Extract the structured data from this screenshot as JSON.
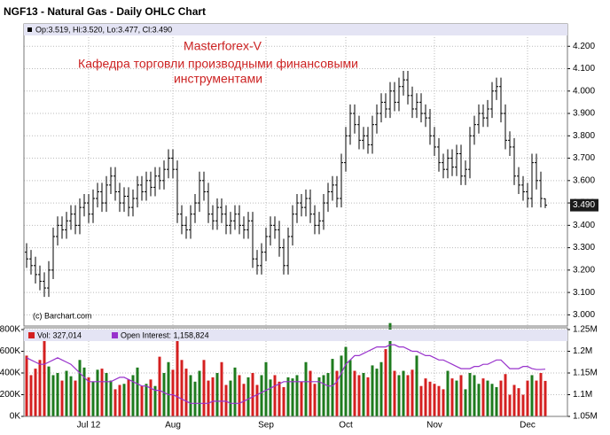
{
  "title": "NGF13 - Natural Gas - Daily OHLC Chart",
  "chart_data": [
    {
      "type": "ohlc",
      "info": "Op:3.519, Hi:3.520, Lo:3.477, Cl:3.490",
      "last_label": "3.490",
      "annotations": [
        "Masterforex-V",
        "Кафедра торговли производными финансовыми",
        "инструментами",
        "(c) Barchart.com"
      ],
      "color": "#000000",
      "ylim": [
        2.95,
        4.3
      ],
      "yticks": [
        {
          "value": 3.0,
          "label": "3.000"
        },
        {
          "value": 3.1,
          "label": "3.100"
        },
        {
          "value": 3.2,
          "label": "3.200"
        },
        {
          "value": 3.3,
          "label": "3.300"
        },
        {
          "value": 3.4,
          "label": "3.400"
        },
        {
          "value": 3.5,
          "label": "3.500"
        },
        {
          "value": 3.6,
          "label": "3.600"
        },
        {
          "value": 3.7,
          "label": "3.700"
        },
        {
          "value": 3.8,
          "label": "3.800"
        },
        {
          "value": 3.9,
          "label": "3.900"
        },
        {
          "value": 4.0,
          "label": "4.000"
        },
        {
          "value": 4.1,
          "label": "4.100"
        },
        {
          "value": 4.2,
          "label": "4.200"
        }
      ],
      "grid": true,
      "open": [
        3.28,
        3.25,
        3.22,
        3.18,
        3.15,
        3.12,
        3.2,
        3.35,
        3.4,
        3.38,
        3.42,
        3.45,
        3.4,
        3.48,
        3.5,
        3.45,
        3.52,
        3.55,
        3.5,
        3.58,
        3.62,
        3.55,
        3.5,
        3.53,
        3.48,
        3.52,
        3.58,
        3.55,
        3.6,
        3.57,
        3.62,
        3.6,
        3.65,
        3.7,
        3.65,
        3.45,
        3.4,
        3.38,
        3.45,
        3.5,
        3.6,
        3.55,
        3.45,
        3.42,
        3.48,
        3.45,
        3.4,
        3.42,
        3.45,
        3.4,
        3.38,
        3.42,
        3.25,
        3.22,
        3.28,
        3.35,
        3.4,
        3.38,
        3.3,
        3.22,
        3.35,
        3.45,
        3.5,
        3.48,
        3.52,
        3.45,
        3.4,
        3.42,
        3.5,
        3.55,
        3.58,
        3.52,
        3.68,
        3.8,
        3.9,
        3.85,
        3.78,
        3.8,
        3.76,
        3.85,
        3.9,
        3.95,
        3.92,
        4.0,
        3.95,
        4.02,
        4.05,
        3.98,
        3.92,
        3.95,
        3.9,
        3.88,
        3.8,
        3.75,
        3.68,
        3.65,
        3.7,
        3.66,
        3.72,
        3.62,
        3.65,
        3.8,
        3.85,
        3.9,
        3.88,
        3.92,
        4.0,
        4.02,
        3.9,
        3.78,
        3.75,
        3.62,
        3.58,
        3.55,
        3.52,
        3.68,
        3.6,
        3.519
      ],
      "high": [
        3.32,
        3.29,
        3.26,
        3.22,
        3.19,
        3.24,
        3.39,
        3.44,
        3.44,
        3.46,
        3.49,
        3.49,
        3.52,
        3.54,
        3.54,
        3.56,
        3.59,
        3.59,
        3.62,
        3.66,
        3.66,
        3.59,
        3.57,
        3.57,
        3.56,
        3.62,
        3.62,
        3.64,
        3.64,
        3.66,
        3.66,
        3.69,
        3.74,
        3.74,
        3.69,
        3.49,
        3.44,
        3.49,
        3.54,
        3.64,
        3.64,
        3.59,
        3.49,
        3.52,
        3.52,
        3.49,
        3.46,
        3.49,
        3.49,
        3.44,
        3.46,
        3.46,
        3.29,
        3.32,
        3.39,
        3.44,
        3.44,
        3.42,
        3.34,
        3.39,
        3.49,
        3.54,
        3.54,
        3.56,
        3.56,
        3.49,
        3.46,
        3.54,
        3.59,
        3.62,
        3.62,
        3.72,
        3.84,
        3.94,
        3.94,
        3.89,
        3.84,
        3.84,
        3.89,
        3.94,
        3.99,
        3.99,
        4.04,
        4.04,
        4.06,
        4.09,
        4.09,
        4.02,
        3.99,
        3.99,
        3.94,
        3.92,
        3.84,
        3.79,
        3.72,
        3.74,
        3.74,
        3.76,
        3.76,
        3.69,
        3.84,
        3.89,
        3.94,
        3.94,
        3.96,
        4.04,
        4.06,
        4.06,
        3.94,
        3.82,
        3.79,
        3.66,
        3.62,
        3.59,
        3.72,
        3.72,
        3.64,
        3.52
      ],
      "low": [
        3.21,
        3.18,
        3.14,
        3.11,
        3.08,
        3.08,
        3.16,
        3.31,
        3.34,
        3.34,
        3.38,
        3.36,
        3.36,
        3.44,
        3.41,
        3.41,
        3.48,
        3.46,
        3.46,
        3.54,
        3.51,
        3.46,
        3.46,
        3.44,
        3.44,
        3.48,
        3.51,
        3.51,
        3.53,
        3.53,
        3.56,
        3.56,
        3.61,
        3.61,
        3.41,
        3.36,
        3.34,
        3.34,
        3.41,
        3.46,
        3.51,
        3.41,
        3.38,
        3.38,
        3.41,
        3.36,
        3.36,
        3.38,
        3.36,
        3.34,
        3.34,
        3.21,
        3.18,
        3.18,
        3.24,
        3.31,
        3.34,
        3.26,
        3.18,
        3.18,
        3.31,
        3.41,
        3.44,
        3.44,
        3.41,
        3.36,
        3.36,
        3.38,
        3.46,
        3.51,
        3.48,
        3.48,
        3.64,
        3.76,
        3.81,
        3.74,
        3.74,
        3.72,
        3.72,
        3.81,
        3.86,
        3.88,
        3.88,
        3.91,
        3.91,
        3.98,
        3.94,
        3.88,
        3.88,
        3.86,
        3.84,
        3.76,
        3.71,
        3.64,
        3.61,
        3.61,
        3.62,
        3.62,
        3.58,
        3.58,
        3.61,
        3.76,
        3.81,
        3.84,
        3.84,
        3.88,
        3.96,
        3.86,
        3.74,
        3.71,
        3.58,
        3.54,
        3.51,
        3.48,
        3.48,
        3.56,
        3.48,
        3.477
      ],
      "close": [
        3.25,
        3.22,
        3.18,
        3.15,
        3.12,
        3.2,
        3.35,
        3.4,
        3.38,
        3.42,
        3.45,
        3.4,
        3.48,
        3.5,
        3.45,
        3.52,
        3.55,
        3.5,
        3.58,
        3.62,
        3.55,
        3.5,
        3.53,
        3.48,
        3.52,
        3.58,
        3.55,
        3.6,
        3.57,
        3.62,
        3.6,
        3.65,
        3.7,
        3.65,
        3.45,
        3.4,
        3.38,
        3.45,
        3.5,
        3.6,
        3.55,
        3.45,
        3.42,
        3.48,
        3.45,
        3.4,
        3.42,
        3.45,
        3.4,
        3.38,
        3.42,
        3.25,
        3.22,
        3.28,
        3.35,
        3.4,
        3.38,
        3.3,
        3.22,
        3.35,
        3.45,
        3.5,
        3.48,
        3.52,
        3.45,
        3.4,
        3.42,
        3.5,
        3.55,
        3.58,
        3.52,
        3.68,
        3.8,
        3.9,
        3.85,
        3.78,
        3.8,
        3.76,
        3.85,
        3.9,
        3.95,
        3.92,
        4.0,
        3.95,
        4.02,
        4.05,
        3.98,
        3.92,
        3.95,
        3.9,
        3.88,
        3.8,
        3.75,
        3.68,
        3.65,
        3.7,
        3.66,
        3.72,
        3.62,
        3.65,
        3.8,
        3.85,
        3.9,
        3.88,
        3.92,
        4.0,
        4.02,
        3.9,
        3.78,
        3.75,
        3.62,
        3.58,
        3.55,
        3.52,
        3.68,
        3.6,
        3.52,
        3.49
      ]
    },
    {
      "type": "bar",
      "categories": [
        null,
        null,
        null,
        null,
        null,
        null,
        null,
        null,
        null,
        null,
        null,
        null,
        null,
        null,
        "Jul 12",
        null,
        null,
        null,
        null,
        null,
        null,
        null,
        null,
        null,
        null,
        null,
        null,
        null,
        null,
        null,
        null,
        null,
        null,
        "Aug",
        null,
        null,
        null,
        null,
        null,
        null,
        null,
        null,
        null,
        null,
        null,
        null,
        null,
        null,
        null,
        null,
        null,
        null,
        null,
        null,
        "Sep",
        null,
        null,
        null,
        null,
        null,
        null,
        null,
        null,
        null,
        null,
        null,
        null,
        null,
        null,
        null,
        null,
        null,
        "Oct",
        null,
        null,
        null,
        null,
        null,
        null,
        null,
        null,
        null,
        null,
        null,
        null,
        null,
        null,
        null,
        null,
        null,
        null,
        null,
        "Nov",
        null,
        null,
        null,
        null,
        null,
        null,
        null,
        null,
        null,
        null,
        null,
        null,
        null,
        null,
        null,
        null,
        null,
        null,
        null,
        null,
        "Dec",
        null,
        null,
        null,
        null
      ],
      "ylim": [
        0,
        800000
      ],
      "yticks": [
        {
          "value": 0,
          "label": "0K"
        },
        {
          "value": 200000,
          "label": "200K"
        },
        {
          "value": 400000,
          "label": "400K"
        },
        {
          "value": 600000,
          "label": "600K"
        },
        {
          "value": 800000,
          "label": "800K"
        }
      ],
      "y2lim": [
        1050000,
        1250000
      ],
      "y2ticks": [
        {
          "value": 1050000,
          "label": "1.05M"
        },
        {
          "value": 1100000,
          "label": "1.1M"
        },
        {
          "value": 1150000,
          "label": "1.15M"
        },
        {
          "value": 1200000,
          "label": "1.2M"
        },
        {
          "value": 1250000,
          "label": "1.25M"
        }
      ],
      "grid": true,
      "up_color": "#1e7b1e",
      "series": [
        {
          "name": "Vol: 327,014",
          "color": "#d42020",
          "values": [
            560000,
            380000,
            440000,
            520000,
            700000,
            460000,
            380000,
            400000,
            330000,
            420000,
            370000,
            330000,
            520000,
            450000,
            360000,
            320000,
            430000,
            440000,
            400000,
            330000,
            250000,
            290000,
            300000,
            340000,
            380000,
            450000,
            280000,
            300000,
            340000,
            280000,
            550000,
            400000,
            500000,
            430000,
            760000,
            520000,
            440000,
            380000,
            320000,
            420000,
            520000,
            330000,
            360000,
            400000,
            500000,
            290000,
            330000,
            450000,
            380000,
            300000,
            360000,
            400000,
            290000,
            380000,
            500000,
            340000,
            380000,
            320000,
            270000,
            360000,
            350000,
            380000,
            320000,
            500000,
            420000,
            300000,
            360000,
            380000,
            400000,
            530000,
            420000,
            560000,
            640000,
            520000,
            420000,
            380000,
            400000,
            360000,
            470000,
            440000,
            500000,
            620000,
            860000,
            420000,
            380000,
            420000,
            380000,
            430000,
            560000,
            280000,
            350000,
            320000,
            300000,
            280000,
            250000,
            420000,
            350000,
            330000,
            380000,
            250000,
            400000,
            380000,
            300000,
            350000,
            330000,
            300000,
            270000,
            330000,
            390000,
            200000,
            290000,
            260000,
            200000,
            330000,
            380000,
            330000,
            400000,
            327014
          ]
        },
        {
          "name": "Open Interest: 1,158,824",
          "color": "#9933cc",
          "axis": "y2",
          "values": [
            1185000,
            1180000,
            1175000,
            1170000,
            1170000,
            1175000,
            1180000,
            1185000,
            1180000,
            1175000,
            1170000,
            1160000,
            1150000,
            1140000,
            1130000,
            1130000,
            1130000,
            1130000,
            1130000,
            1130000,
            1135000,
            1140000,
            1140000,
            1135000,
            1130000,
            1125000,
            1120000,
            1120000,
            1115000,
            1110000,
            1110000,
            1105000,
            1100000,
            1100000,
            1095000,
            1090000,
            1085000,
            1080000,
            1080000,
            1080000,
            1080000,
            1080000,
            1085000,
            1085000,
            1085000,
            1085000,
            1080000,
            1080000,
            1080000,
            1085000,
            1090000,
            1095000,
            1100000,
            1105000,
            1110000,
            1115000,
            1120000,
            1125000,
            1130000,
            1130000,
            1130000,
            1130000,
            1130000,
            1130000,
            1130000,
            1130000,
            1130000,
            1125000,
            1120000,
            1120000,
            1130000,
            1150000,
            1170000,
            1180000,
            1190000,
            1190000,
            1195000,
            1200000,
            1205000,
            1210000,
            1210000,
            1210000,
            1215000,
            1215000,
            1210000,
            1210000,
            1205000,
            1200000,
            1200000,
            1195000,
            1190000,
            1190000,
            1185000,
            1180000,
            1180000,
            1175000,
            1170000,
            1165000,
            1160000,
            1160000,
            1160000,
            1165000,
            1165000,
            1170000,
            1170000,
            1175000,
            1180000,
            1180000,
            1170000,
            1160000,
            1160000,
            1160000,
            1165000,
            1165000,
            1160000,
            1158000,
            1158000,
            1158824
          ]
        }
      ]
    }
  ]
}
